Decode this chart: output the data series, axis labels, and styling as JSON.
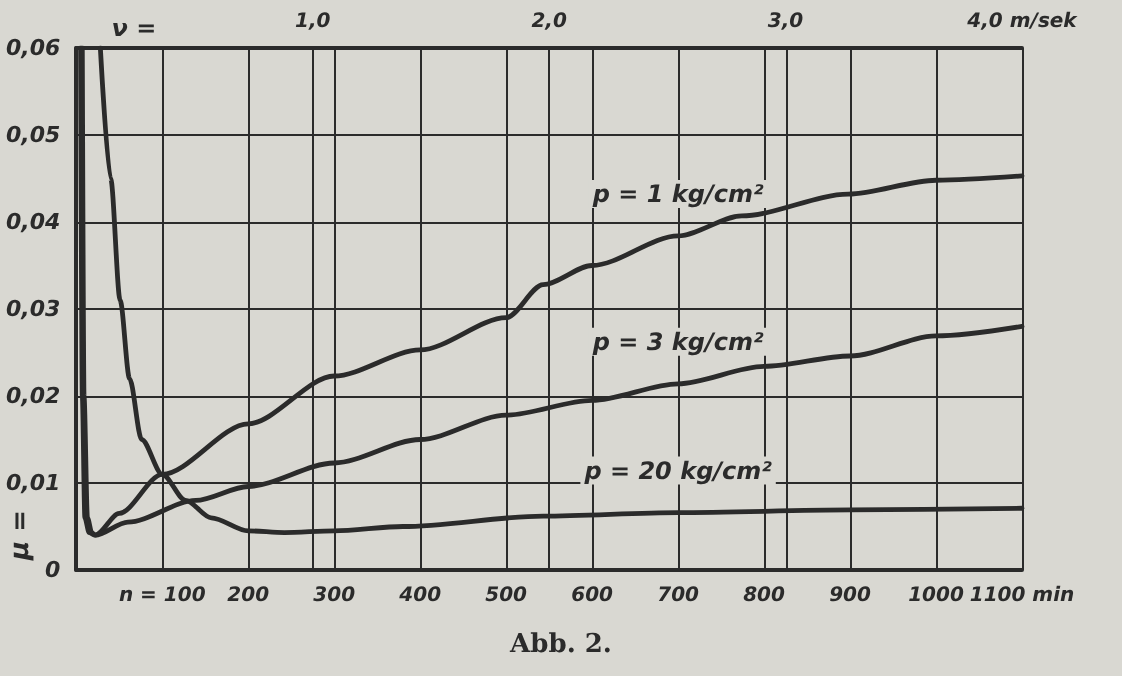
{
  "chart_data": {
    "type": "line",
    "xlabel": null,
    "ylabel": "μ =",
    "x2label": "ν =",
    "annotations": [
      "Abb. 2."
    ],
    "xlim": [
      0,
      1100
    ],
    "xticks": [
      {
        "value": 0,
        "label": null
      },
      {
        "value": 100,
        "label": "n = 100"
      },
      200,
      300,
      400,
      500,
      600,
      700,
      800,
      900,
      1000,
      {
        "value": 1100,
        "label": "1100 min"
      }
    ],
    "x2lim": [
      0,
      4.0
    ],
    "x2ticks": [
      {
        "value": 1.0,
        "label": "1,0"
      },
      {
        "value": 2.0,
        "label": "2,0"
      },
      {
        "value": 3.0,
        "label": "3,0"
      },
      {
        "value": 4.0,
        "label": "4,0 m/sek"
      }
    ],
    "ylim": [
      0,
      0.06
    ],
    "yticks": [
      {
        "value": 0,
        "label": "0"
      },
      {
        "value": 0.01,
        "label": "0,01"
      },
      {
        "value": 0.02,
        "label": "0,02"
      },
      {
        "value": 0.03,
        "label": "0,03"
      },
      {
        "value": 0.04,
        "label": "0,04"
      },
      {
        "value": 0.05,
        "label": "0,05"
      },
      {
        "value": 0.06,
        "label": "0,06"
      }
    ],
    "grid": true,
    "legend": false,
    "marker": "none",
    "line_style": "solid",
    "series": [
      {
        "name": "p = 1 kg/cm²",
        "color": "#2b2b2b",
        "x": [
          5,
          7,
          10,
          15,
          22,
          50,
          100,
          200,
          300,
          400,
          500,
          543,
          600,
          700,
          774,
          898,
          1000,
          1100
        ],
        "values": [
          0.06,
          0.02,
          0.006,
          0.0043,
          0.004,
          0.0065,
          0.011,
          0.0168,
          0.0223,
          0.0253,
          0.029,
          0.0328,
          0.035,
          0.0384,
          0.0407,
          0.0432,
          0.0448,
          0.0453
        ]
      },
      {
        "name": "p = 3 kg/cm²",
        "color": "#2b2b2b",
        "x": [
          7,
          9,
          13,
          18,
          22,
          60,
          139,
          200,
          300,
          400,
          500,
          600,
          700,
          800,
          900,
          1000,
          1100
        ],
        "values": [
          0.06,
          0.02,
          0.006,
          0.0043,
          0.004,
          0.0055,
          0.008,
          0.0096,
          0.0123,
          0.015,
          0.0178,
          0.0195,
          0.0214,
          0.0234,
          0.0246,
          0.0269,
          0.028
        ]
      },
      {
        "name": "p = 20 kg/cm²",
        "color": "#2b2b2b",
        "x": [
          28,
          40,
          51,
          62,
          76,
          100,
          127,
          157,
          200,
          242,
          300,
          380,
          543,
          700,
          900,
          1100
        ],
        "values": [
          0.06,
          0.045,
          0.031,
          0.022,
          0.015,
          0.011,
          0.008,
          0.006,
          0.0045,
          0.0043,
          0.0045,
          0.005,
          0.0062,
          0.0066,
          0.0069,
          0.0071
        ]
      }
    ]
  }
}
